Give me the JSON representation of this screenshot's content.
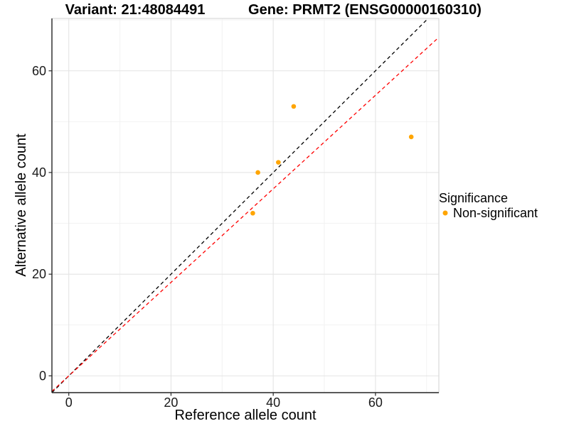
{
  "figure": {
    "title_left": "Variant: 21:48084491",
    "title_right": "Gene: PRMT2 (ENSG00000160310)"
  },
  "chart_data": {
    "type": "scatter",
    "title": "Variant: 21:48084491   Gene: PRMT2 (ENSG00000160310)",
    "xlabel": "Reference allele count",
    "ylabel": "Alternative allele count",
    "xlim": [
      -3.3,
      72.4
    ],
    "ylim": [
      -3.3,
      70.3
    ],
    "xticks": [
      0,
      20,
      40,
      60
    ],
    "yticks": [
      0,
      20,
      40,
      60
    ],
    "x_minor": [
      10,
      30,
      50,
      70
    ],
    "y_minor": [
      10,
      30,
      50,
      70
    ],
    "grid": true,
    "legend_position": "right",
    "point_color": "#FFA500",
    "points": [
      {
        "x": 44,
        "y": 53
      },
      {
        "x": 67,
        "y": 47
      },
      {
        "x": 41,
        "y": 42
      },
      {
        "x": 37,
        "y": 40
      },
      {
        "x": 36,
        "y": 32
      }
    ],
    "lines": [
      {
        "name": "identity-line",
        "color": "#000000",
        "style": "dashed",
        "slope": 1.0,
        "intercept": 0,
        "x1": -3.3,
        "y1": -3.3,
        "x2": 70.3,
        "y2": 70.3
      },
      {
        "name": "expected-ratio-line",
        "color": "#FF0000",
        "style": "dashed",
        "slope": 0.92,
        "intercept": 0,
        "x1": -3.3,
        "y1": -3.04,
        "x2": 72.4,
        "y2": 66.6
      }
    ],
    "legend": {
      "title": "Significance",
      "items": [
        {
          "label": "Non-significant",
          "color": "#FFA500"
        }
      ]
    }
  }
}
